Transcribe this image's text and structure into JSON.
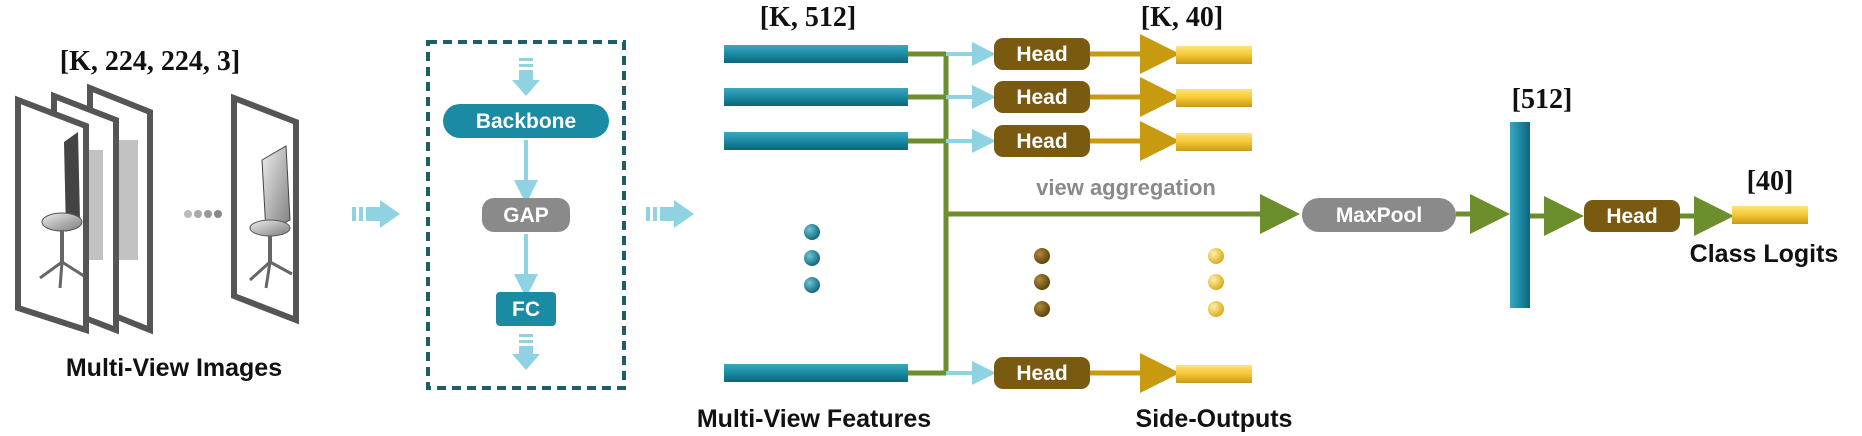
{
  "colors": {
    "teal": "#1b8aa3",
    "teal_dark": "#136f84",
    "light_blue": "#8fd3e2",
    "green": "#6d8e2d",
    "brown": "#7a5a10",
    "orange": "#c89a10",
    "yellow": "#f4c734",
    "grey": "#8a8a8a",
    "dashed_border": "#1f5e66"
  },
  "input": {
    "shape_label": "[K, 224, 224, 3]",
    "caption": "Multi-View Images"
  },
  "backbone_block": {
    "backbone": "Backbone",
    "gap": "GAP",
    "fc": "FC"
  },
  "features": {
    "shape_label": "[K, 512]",
    "caption": "Multi-View Features"
  },
  "heads": {
    "label": "Head",
    "shape_label": "[K, 40]",
    "caption": "Side-Outputs"
  },
  "aggregation": {
    "label": "view aggregation",
    "pool": "MaxPool",
    "pooled_shape": "[512]"
  },
  "output": {
    "head": "Head",
    "shape_label": "[40]",
    "caption": "Class Logits"
  }
}
